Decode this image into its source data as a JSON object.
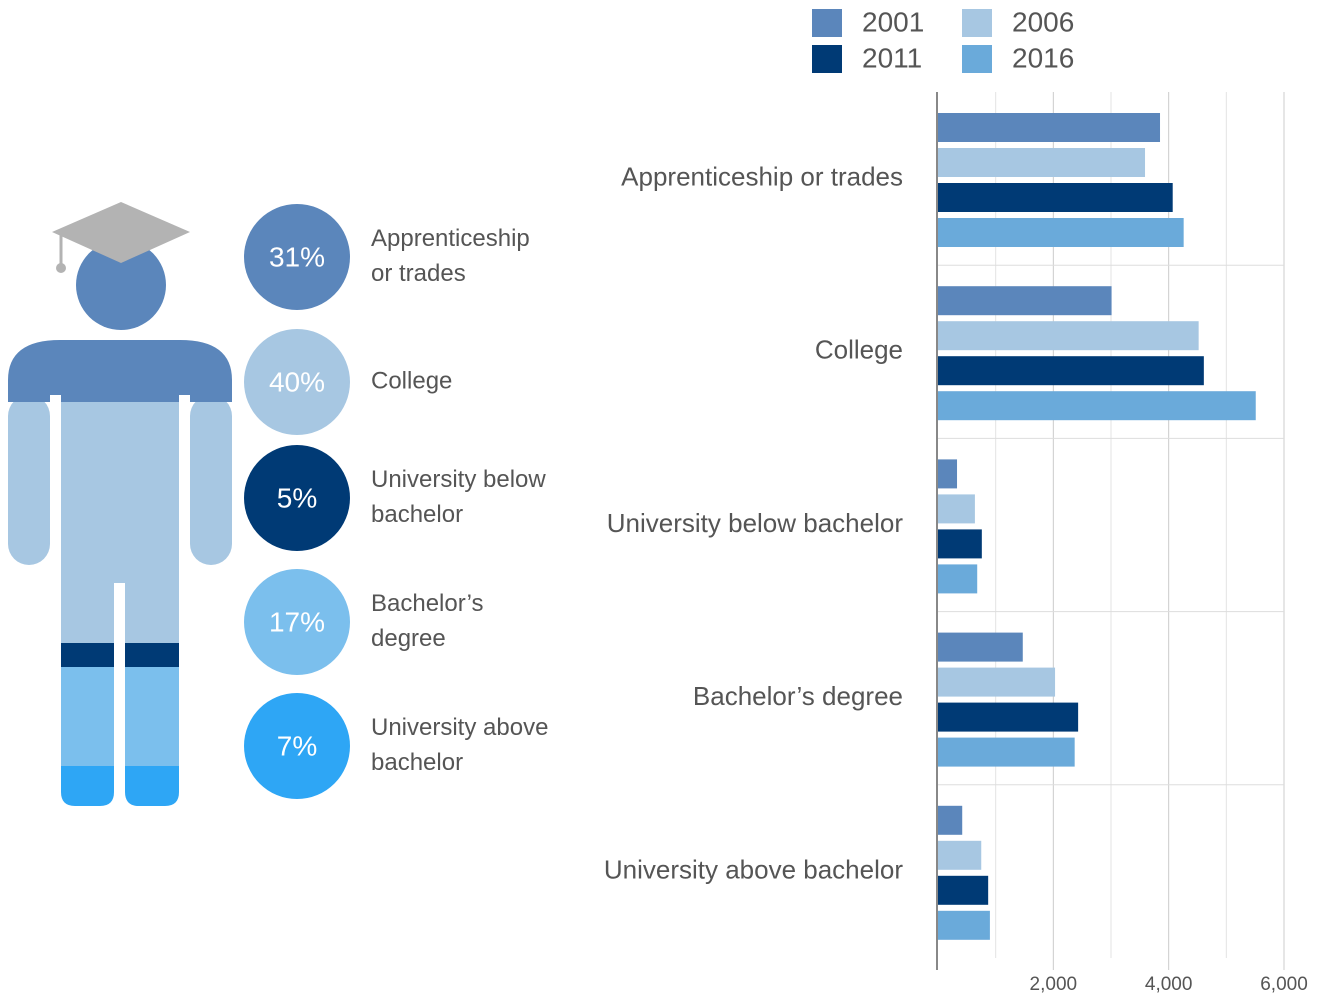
{
  "chart_data": [
    {
      "type": "infographic",
      "labels": [
        [
          "Apprenticeship",
          "or trades"
        ],
        [
          "College"
        ],
        [
          "University below",
          "bachelor"
        ],
        [
          "Bachelor’s",
          "degree"
        ],
        [
          "University above",
          "bachelor"
        ]
      ],
      "values": [
        31,
        40,
        5,
        17,
        7
      ],
      "value_labels": [
        "31%",
        "40%",
        "5%",
        "17%",
        "7%"
      ],
      "colors": [
        "#5b86bb",
        "#a7c7e2",
        "#003a75",
        "#7bbfed",
        "#2ea6f5"
      ]
    },
    {
      "type": "hbar",
      "categories": [
        "Apprenticeship or trades",
        "College",
        "University below bachelor",
        "Bachelor’s degree",
        "University above bachelor"
      ],
      "series": [
        {
          "name": "2001",
          "color": "#5b86bb",
          "values": [
            3850,
            3010,
            330,
            1470,
            420
          ]
        },
        {
          "name": "2006",
          "color": "#a7c7e2",
          "values": [
            3590,
            4520,
            640,
            2030,
            750
          ]
        },
        {
          "name": "2011",
          "color": "#003a75",
          "values": [
            4070,
            4610,
            760,
            2430,
            870
          ]
        },
        {
          "name": "2016",
          "color": "#6aaada",
          "values": [
            4260,
            5510,
            680,
            2370,
            900
          ]
        }
      ],
      "xlim": [
        0,
        6000
      ],
      "xticks": [
        {
          "value": 2000,
          "label": "2,000"
        },
        {
          "value": 4000,
          "label": "4,000"
        },
        {
          "value": 6000,
          "label": "6,000"
        }
      ],
      "minor_xticks": [
        1000,
        3000,
        5000
      ],
      "grid": true,
      "legend": "top"
    }
  ]
}
